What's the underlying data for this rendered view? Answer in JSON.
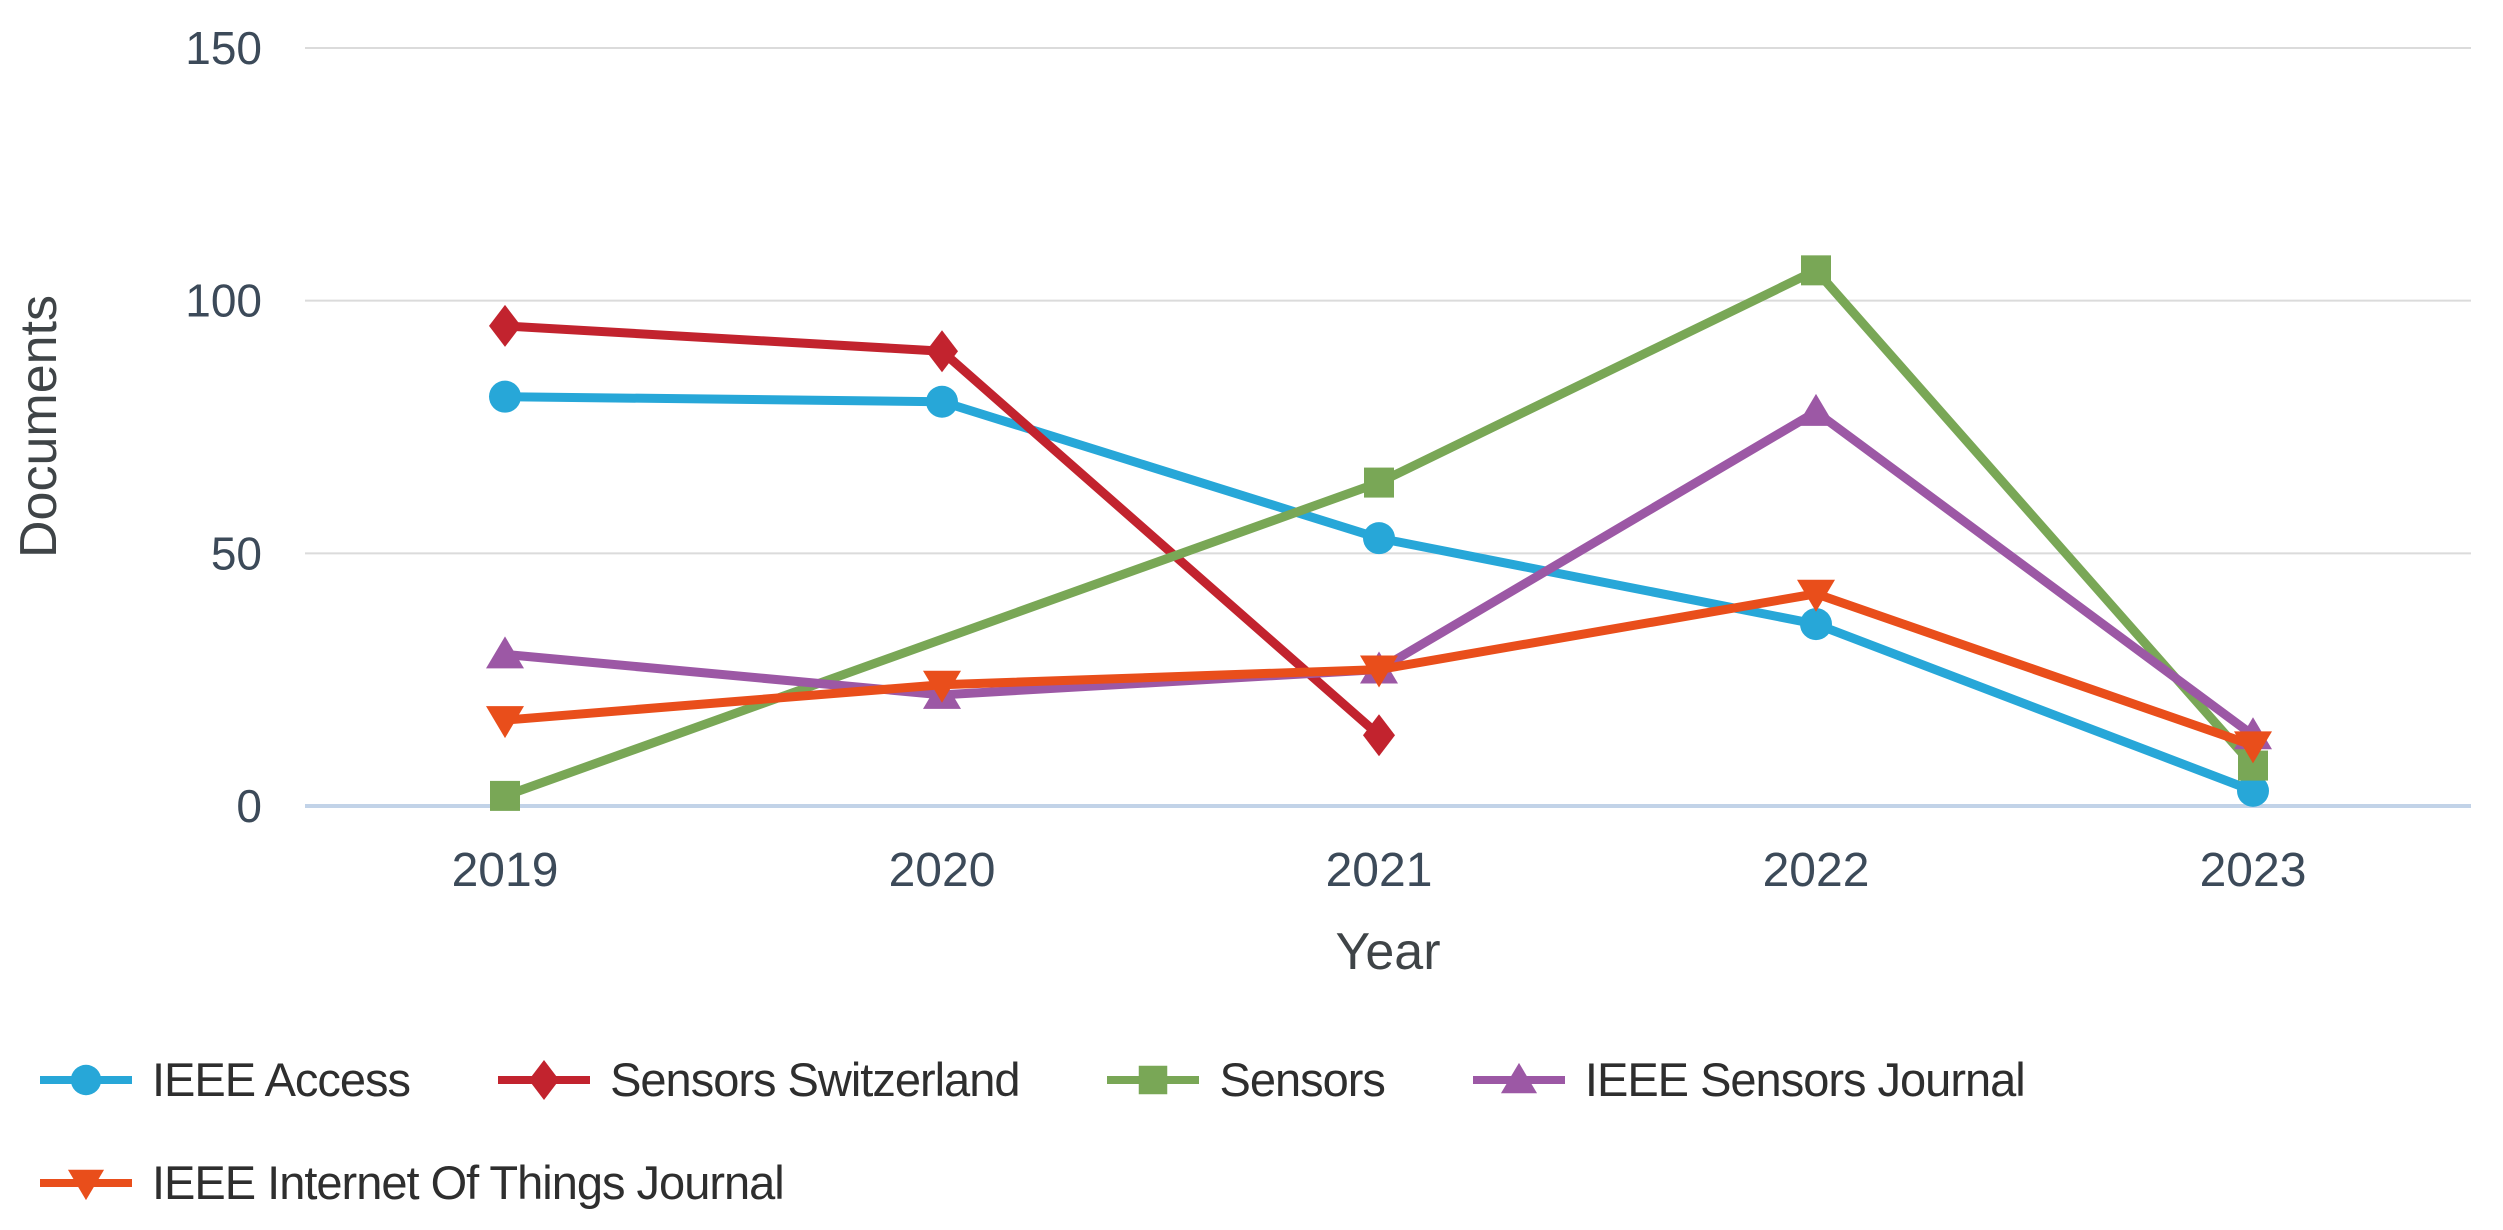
{
  "chart_data": {
    "type": "line",
    "title": "",
    "xlabel": "Year",
    "ylabel": "Documents",
    "x": [
      "2019",
      "2020",
      "2021",
      "2022",
      "2023"
    ],
    "y_ticks": [
      0,
      50,
      100,
      150
    ],
    "ylim": [
      0,
      150
    ],
    "grid": "horizontal",
    "legend_position": "bottom-left",
    "colors": {
      "gridline": "#dbdbdb",
      "axis_line": "#c2d3e8",
      "tick_text": "#3c4a59",
      "title_text": "#3f4447",
      "legend_text": "#2e2e2e"
    },
    "series": [
      {
        "name": "IEEE Access",
        "color": "#27a7d8",
        "marker": "circle",
        "values": [
          81,
          80,
          53,
          36,
          3
        ]
      },
      {
        "name": "Sensors Switzerland",
        "color": "#c2232e",
        "marker": "diamond",
        "values": [
          95,
          90,
          14,
          null,
          null
        ]
      },
      {
        "name": "Sensors",
        "color": "#79a756",
        "marker": "square",
        "values": [
          2,
          null,
          64,
          106,
          8
        ]
      },
      {
        "name": "IEEE Sensors Journal",
        "color": "#9c58a5",
        "marker": "triangle-up",
        "values": [
          30,
          22,
          27,
          78,
          14
        ]
      },
      {
        "name": "IEEE Internet Of Things Journal",
        "color": "#e94e1b",
        "marker": "triangle-down",
        "values": [
          17,
          24,
          27,
          42,
          12
        ]
      }
    ]
  }
}
